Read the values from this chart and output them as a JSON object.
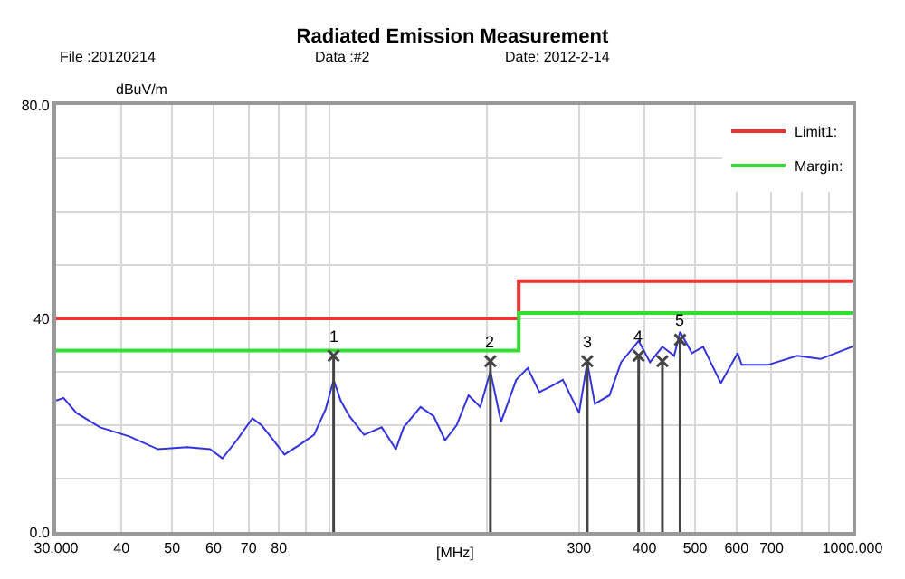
{
  "chart_data": {
    "type": "line",
    "title": "Radiated Emission Measurement",
    "ylabel": "dBuV/m",
    "xlabel": "[MHz]",
    "annotations": [
      "File :20120214",
      "Data :#2",
      "Date: 2012-2-14",
      {
        "text": "1",
        "x": 101.8,
        "y": 33
      },
      {
        "text": "2",
        "x": 203,
        "y": 32
      },
      {
        "text": "3",
        "x": 311,
        "y": 32
      },
      {
        "text": "4",
        "x": 390,
        "y": 33
      },
      {
        "text": "5",
        "x": 468,
        "y": 36
      }
    ],
    "log": "x",
    "xlim": [
      30,
      1000
    ],
    "ylim": [
      0,
      80
    ],
    "xticks": [
      {
        "value": 30,
        "label": "30.000"
      },
      40,
      50,
      60,
      70,
      80,
      {
        "value": 90,
        "label": null
      },
      {
        "value": 100,
        "label": null
      },
      {
        "value": 200,
        "label": null
      },
      300,
      400,
      500,
      600,
      700,
      {
        "value": 800,
        "label": null
      },
      {
        "value": 900,
        "label": null
      },
      {
        "value": 1000,
        "label": "1000.000"
      }
    ],
    "yticks": [
      {
        "value": 0,
        "label": "0.0"
      },
      {
        "value": 10,
        "label": null
      },
      {
        "value": 20,
        "label": null
      },
      {
        "value": 30,
        "label": null
      },
      40,
      {
        "value": 50,
        "label": null
      },
      {
        "value": 60,
        "label": null
      },
      {
        "value": 70,
        "label": null
      },
      {
        "value": 80,
        "label": "80.0"
      }
    ],
    "grid": true,
    "legend": "top right",
    "series": [
      {
        "color": "#3333dd",
        "x": [
          30,
          31,
          32.8,
          36.4,
          41.4,
          47,
          53.4,
          59.1,
          62.4,
          66.5,
          71.2,
          74.1,
          77.1,
          82,
          87.3,
          93.4,
          98.3,
          101.8,
          105,
          109.1,
          116.4,
          125.8,
          133.9,
          138.6,
          149.3,
          158.1,
          166.3,
          175,
          184.4,
          194.2,
          203,
          212.8,
          227.5,
          239.3,
          251.9,
          265.5,
          279.3,
          300,
          311,
          321.6,
          343,
          361,
          390,
          410,
          433,
          456,
          468,
          493,
          518,
          560,
          603,
          614,
          689,
          784,
          869,
          1000
        ],
        "values": [
          24.6,
          25.1,
          22.3,
          19.6,
          17.9,
          15.5,
          15.9,
          15.5,
          13.8,
          17.2,
          21.3,
          20,
          17.9,
          14.5,
          16.2,
          18.2,
          23,
          28.5,
          24.6,
          21.7,
          18.2,
          19.6,
          15.5,
          19.6,
          23.4,
          21.7,
          17.2,
          20,
          25.6,
          23.4,
          30.1,
          20.6,
          28.5,
          30.7,
          26.2,
          27.3,
          28.5,
          22.3,
          31.8,
          24,
          25.6,
          31.8,
          35.8,
          31.8,
          34.7,
          33,
          37.5,
          33.5,
          34.7,
          27.9,
          33.5,
          31.3,
          31.3,
          33,
          32.4,
          34.7
        ]
      },
      {
        "type": "step",
        "name": "Limit1:",
        "color": "#ee3333",
        "x": [
          30,
          230,
          1000
        ],
        "values": [
          40,
          47,
          47
        ]
      },
      {
        "type": "step",
        "name": "Margin:",
        "color": "#33dd33",
        "x": [
          30,
          230,
          1000
        ],
        "values": [
          34,
          41,
          41
        ]
      },
      {
        "type": "lollipop",
        "color": "#444444",
        "marker": "cross",
        "x": [
          101.8,
          203,
          311,
          390,
          433,
          468
        ],
        "values": [
          33,
          32,
          32,
          33,
          32,
          36
        ]
      }
    ]
  }
}
